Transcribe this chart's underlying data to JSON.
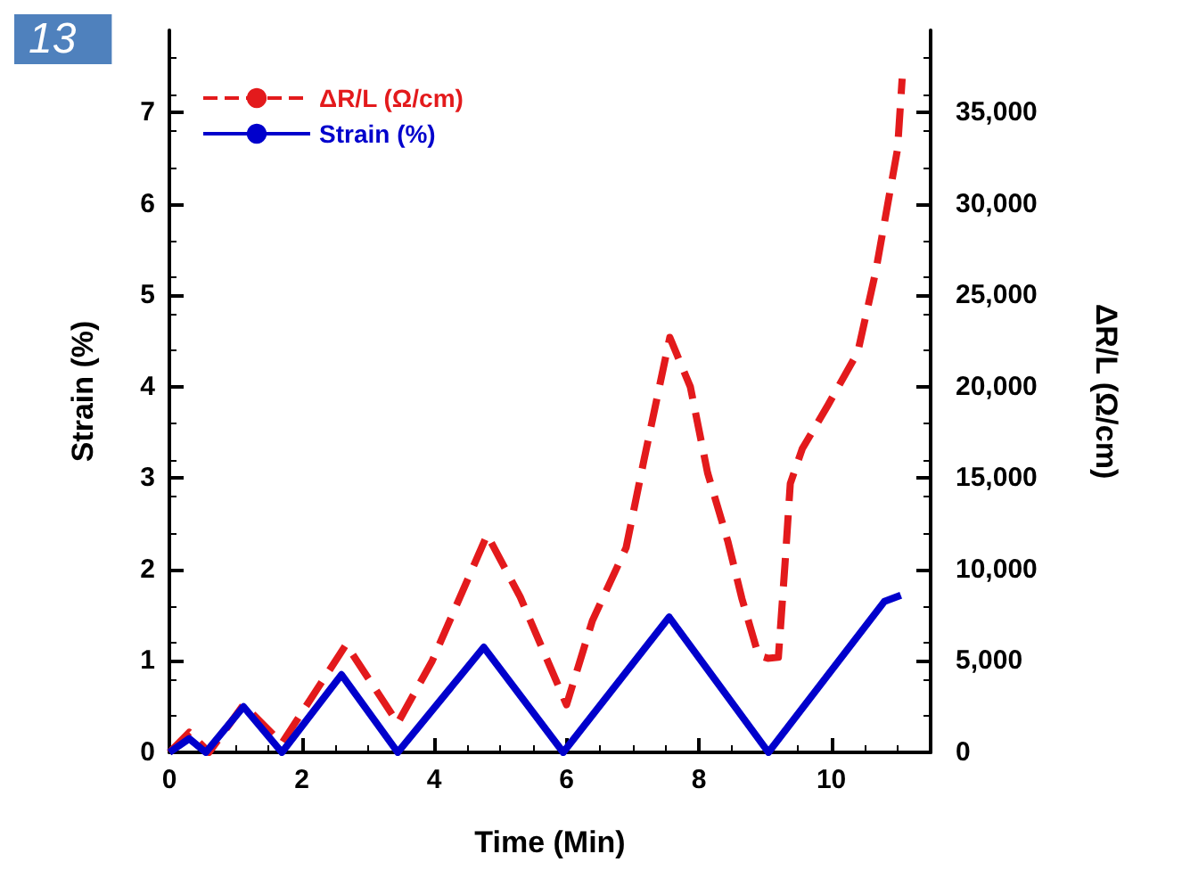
{
  "chart_data": {
    "type": "line",
    "xlabel": "Time (Min)",
    "ylabel": "Strain (%)",
    "y2label": "ΔR/L (Ω/cm)",
    "xlim": [
      0,
      11.5
    ],
    "xticks": [
      0,
      2,
      4,
      6,
      8,
      10
    ],
    "ylim": [
      0,
      7.9
    ],
    "yticks": [
      0,
      1,
      2,
      3,
      4,
      5,
      6,
      7
    ],
    "y2lim": [
      0,
      39500
    ],
    "y2ticks": [
      0,
      {
        "value": 5000,
        "label": "5,000"
      },
      {
        "value": 10000,
        "label": "10,000"
      },
      {
        "value": 15000,
        "label": "15,000"
      },
      {
        "value": 20000,
        "label": "20,000"
      },
      {
        "value": 25000,
        "label": "25,000"
      },
      {
        "value": 30000,
        "label": "30,000"
      },
      {
        "value": 35000,
        "label": "35,000"
      }
    ],
    "grid": false,
    "legend": "top left",
    "marker": "none",
    "annotations": [
      "13"
    ],
    "series": [
      {
        "name": "ΔR/L (Ω/cm)",
        "color": "#e31a1c",
        "axis": "y2",
        "line_style": "dashed",
        "x": [
          0,
          0.3,
          0.6,
          1.12,
          1.7,
          2.67,
          3.45,
          3.97,
          4.8,
          5.3,
          6,
          6.39,
          6.9,
          7.17,
          7.56,
          7.87,
          8.13,
          8.44,
          8.65,
          8.9,
          9.04,
          9.2,
          9.3,
          9.38,
          9.56,
          9.95,
          10.4,
          10.67,
          11.0,
          11.07
        ],
        "values": [
          0,
          1100,
          0,
          2600,
          500,
          5900,
          1600,
          5000,
          11900,
          8500,
          2600,
          7200,
          11200,
          16000,
          22700,
          20000,
          15300,
          11500,
          8400,
          5300,
          5150,
          5200,
          10300,
          14700,
          16600,
          19000,
          21900,
          26300,
          33000,
          36850
        ]
      },
      {
        "name": "Strain (%)",
        "color": "#0000cc",
        "line_style": "solid",
        "x": [
          0,
          0.3,
          0.55,
          1.12,
          1.7,
          2.6,
          3.45,
          4.75,
          5.95,
          7.55,
          9.05,
          10.8,
          11.05
        ],
        "values": [
          0,
          0.15,
          0,
          0.5,
          0,
          0.85,
          0,
          1.15,
          0,
          1.48,
          0,
          1.65,
          1.72
        ]
      }
    ]
  }
}
